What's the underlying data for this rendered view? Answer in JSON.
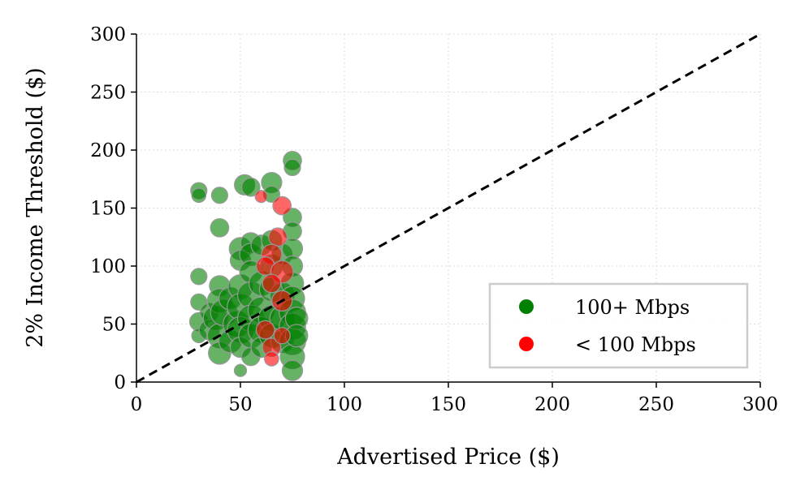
{
  "chart_data": {
    "type": "scatter",
    "title": "",
    "xlabel": "Advertised Price ($)",
    "ylabel": "2% Income Threshold ($)",
    "xlim": [
      0,
      300
    ],
    "ylim": [
      0,
      300
    ],
    "xticks": [
      "0",
      "50",
      "100",
      "150",
      "200",
      "250",
      "300"
    ],
    "yticks": [
      "0",
      "50",
      "100",
      "150",
      "200",
      "250",
      "300"
    ],
    "grid": true,
    "legend": "bottom-right",
    "reference_line": {
      "style": "dashed",
      "color": "#000000",
      "from": [
        0,
        0
      ],
      "to": [
        300,
        300
      ]
    },
    "series": [
      {
        "name": "100+ Mbps",
        "color": "#008000",
        "points": [
          {
            "x": 30,
            "y": 165,
            "s": 4
          },
          {
            "x": 30,
            "y": 161,
            "s": 3
          },
          {
            "x": 40,
            "y": 161,
            "s": 4
          },
          {
            "x": 40,
            "y": 133,
            "s": 5
          },
          {
            "x": 30,
            "y": 91,
            "s": 4
          },
          {
            "x": 30,
            "y": 69,
            "s": 4
          },
          {
            "x": 30,
            "y": 52,
            "s": 5
          },
          {
            "x": 30,
            "y": 40,
            "s": 3
          },
          {
            "x": 35,
            "y": 60,
            "s": 5
          },
          {
            "x": 35,
            "y": 45,
            "s": 6
          },
          {
            "x": 38,
            "y": 55,
            "s": 8
          },
          {
            "x": 40,
            "y": 83,
            "s": 6
          },
          {
            "x": 40,
            "y": 70,
            "s": 8
          },
          {
            "x": 40,
            "y": 40,
            "s": 8
          },
          {
            "x": 40,
            "y": 25,
            "s": 7
          },
          {
            "x": 42,
            "y": 60,
            "s": 9
          },
          {
            "x": 45,
            "y": 72,
            "s": 7
          },
          {
            "x": 45,
            "y": 35,
            "s": 7
          },
          {
            "x": 48,
            "y": 50,
            "s": 9
          },
          {
            "x": 50,
            "y": 115,
            "s": 7
          },
          {
            "x": 50,
            "y": 105,
            "s": 6
          },
          {
            "x": 50,
            "y": 82,
            "s": 8
          },
          {
            "x": 50,
            "y": 65,
            "s": 9
          },
          {
            "x": 50,
            "y": 45,
            "s": 9
          },
          {
            "x": 50,
            "y": 30,
            "s": 6
          },
          {
            "x": 50,
            "y": 10,
            "s": 2
          },
          {
            "x": 52,
            "y": 170,
            "s": 6
          },
          {
            "x": 55,
            "y": 168,
            "s": 5
          },
          {
            "x": 55,
            "y": 120,
            "s": 6
          },
          {
            "x": 55,
            "y": 110,
            "s": 7
          },
          {
            "x": 55,
            "y": 95,
            "s": 7
          },
          {
            "x": 55,
            "y": 75,
            "s": 9
          },
          {
            "x": 55,
            "y": 55,
            "s": 9
          },
          {
            "x": 55,
            "y": 40,
            "s": 8
          },
          {
            "x": 55,
            "y": 22,
            "s": 5
          },
          {
            "x": 60,
            "y": 118,
            "s": 6
          },
          {
            "x": 60,
            "y": 85,
            "s": 8
          },
          {
            "x": 60,
            "y": 62,
            "s": 9
          },
          {
            "x": 60,
            "y": 45,
            "s": 9
          },
          {
            "x": 60,
            "y": 30,
            "s": 6
          },
          {
            "x": 65,
            "y": 172,
            "s": 6
          },
          {
            "x": 65,
            "y": 162,
            "s": 4
          },
          {
            "x": 65,
            "y": 122,
            "s": 6
          },
          {
            "x": 65,
            "y": 100,
            "s": 7
          },
          {
            "x": 65,
            "y": 80,
            "s": 8
          },
          {
            "x": 65,
            "y": 55,
            "s": 9
          },
          {
            "x": 65,
            "y": 40,
            "s": 8
          },
          {
            "x": 70,
            "y": 110,
            "s": 6
          },
          {
            "x": 70,
            "y": 75,
            "s": 8
          },
          {
            "x": 70,
            "y": 55,
            "s": 8
          },
          {
            "x": 70,
            "y": 35,
            "s": 7
          },
          {
            "x": 75,
            "y": 191,
            "s": 5
          },
          {
            "x": 75,
            "y": 185,
            "s": 4
          },
          {
            "x": 75,
            "y": 142,
            "s": 5
          },
          {
            "x": 75,
            "y": 130,
            "s": 5
          },
          {
            "x": 75,
            "y": 115,
            "s": 6
          },
          {
            "x": 75,
            "y": 100,
            "s": 6
          },
          {
            "x": 75,
            "y": 85,
            "s": 7
          },
          {
            "x": 75,
            "y": 72,
            "s": 8
          },
          {
            "x": 75,
            "y": 60,
            "s": 9
          },
          {
            "x": 75,
            "y": 48,
            "s": 9
          },
          {
            "x": 75,
            "y": 35,
            "s": 9
          },
          {
            "x": 75,
            "y": 22,
            "s": 8
          },
          {
            "x": 75,
            "y": 10,
            "s": 6
          },
          {
            "x": 77,
            "y": 55,
            "s": 7
          },
          {
            "x": 77,
            "y": 40,
            "s": 7
          }
        ]
      },
      {
        "name": "< 100 Mbps",
        "color": "#ff0000",
        "points": [
          {
            "x": 70,
            "y": 152,
            "s": 5
          },
          {
            "x": 60,
            "y": 160,
            "s": 2
          },
          {
            "x": 68,
            "y": 125,
            "s": 5
          },
          {
            "x": 65,
            "y": 110,
            "s": 6
          },
          {
            "x": 62,
            "y": 100,
            "s": 5
          },
          {
            "x": 70,
            "y": 95,
            "s": 7
          },
          {
            "x": 65,
            "y": 85,
            "s": 5
          },
          {
            "x": 70,
            "y": 70,
            "s": 6
          },
          {
            "x": 62,
            "y": 45,
            "s": 5
          },
          {
            "x": 65,
            "y": 30,
            "s": 5
          },
          {
            "x": 65,
            "y": 20,
            "s": 3
          },
          {
            "x": 70,
            "y": 40,
            "s": 4
          }
        ]
      }
    ]
  }
}
